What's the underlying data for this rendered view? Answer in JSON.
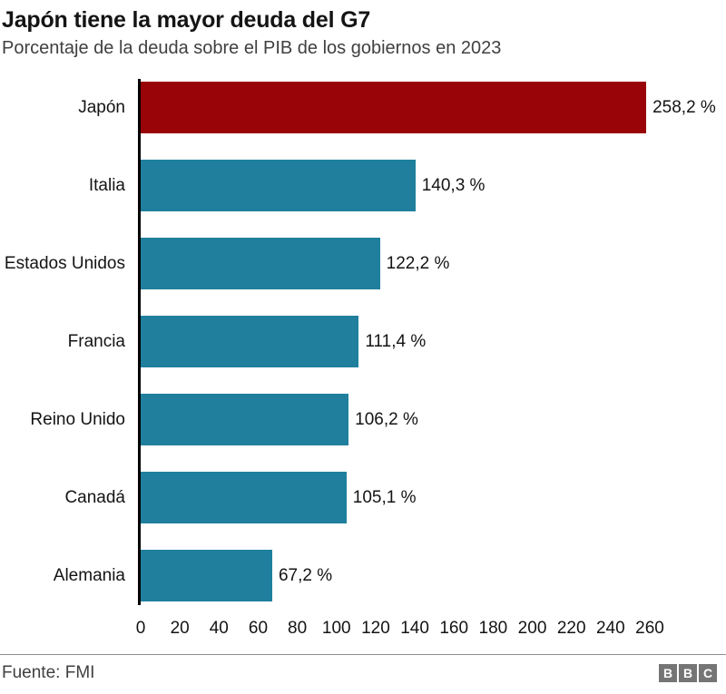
{
  "header": {
    "title": "Japón tiene la mayor deuda del G7",
    "subtitle": "Porcentaje de la deuda sobre el PIB de los gobiernos en 2023"
  },
  "chart_data": {
    "type": "bar",
    "orientation": "horizontal",
    "title": "Japón tiene la mayor deuda del G7",
    "subtitle": "Porcentaje de la deuda sobre el PIB de los gobiernos en 2023",
    "categories": [
      "Japón",
      "Italia",
      "Estados Unidos",
      "Francia",
      "Reino Unido",
      "Canadá",
      "Alemania"
    ],
    "values": [
      258.2,
      140.3,
      122.2,
      111.4,
      106.2,
      105.1,
      67.2
    ],
    "value_labels": [
      "258,2 %",
      "140,3 %",
      "122,2 %",
      "111,4 %",
      "106,2 %",
      "105,1 %",
      "67,2 %"
    ],
    "unit": "% del PIB",
    "colors": {
      "highlight": "#990409",
      "default": "#1f7f9d",
      "highlight_index": 0,
      "axis": "#000000"
    },
    "x_ticks": [
      0,
      20,
      40,
      60,
      80,
      100,
      120,
      140,
      160,
      180,
      200,
      220,
      240,
      260
    ],
    "xlim": [
      0,
      260
    ],
    "xlabel": "",
    "ylabel": "",
    "grid": false,
    "legend": "none"
  },
  "footer": {
    "source": "Fuente: FMI",
    "logo": [
      "B",
      "B",
      "C"
    ]
  }
}
